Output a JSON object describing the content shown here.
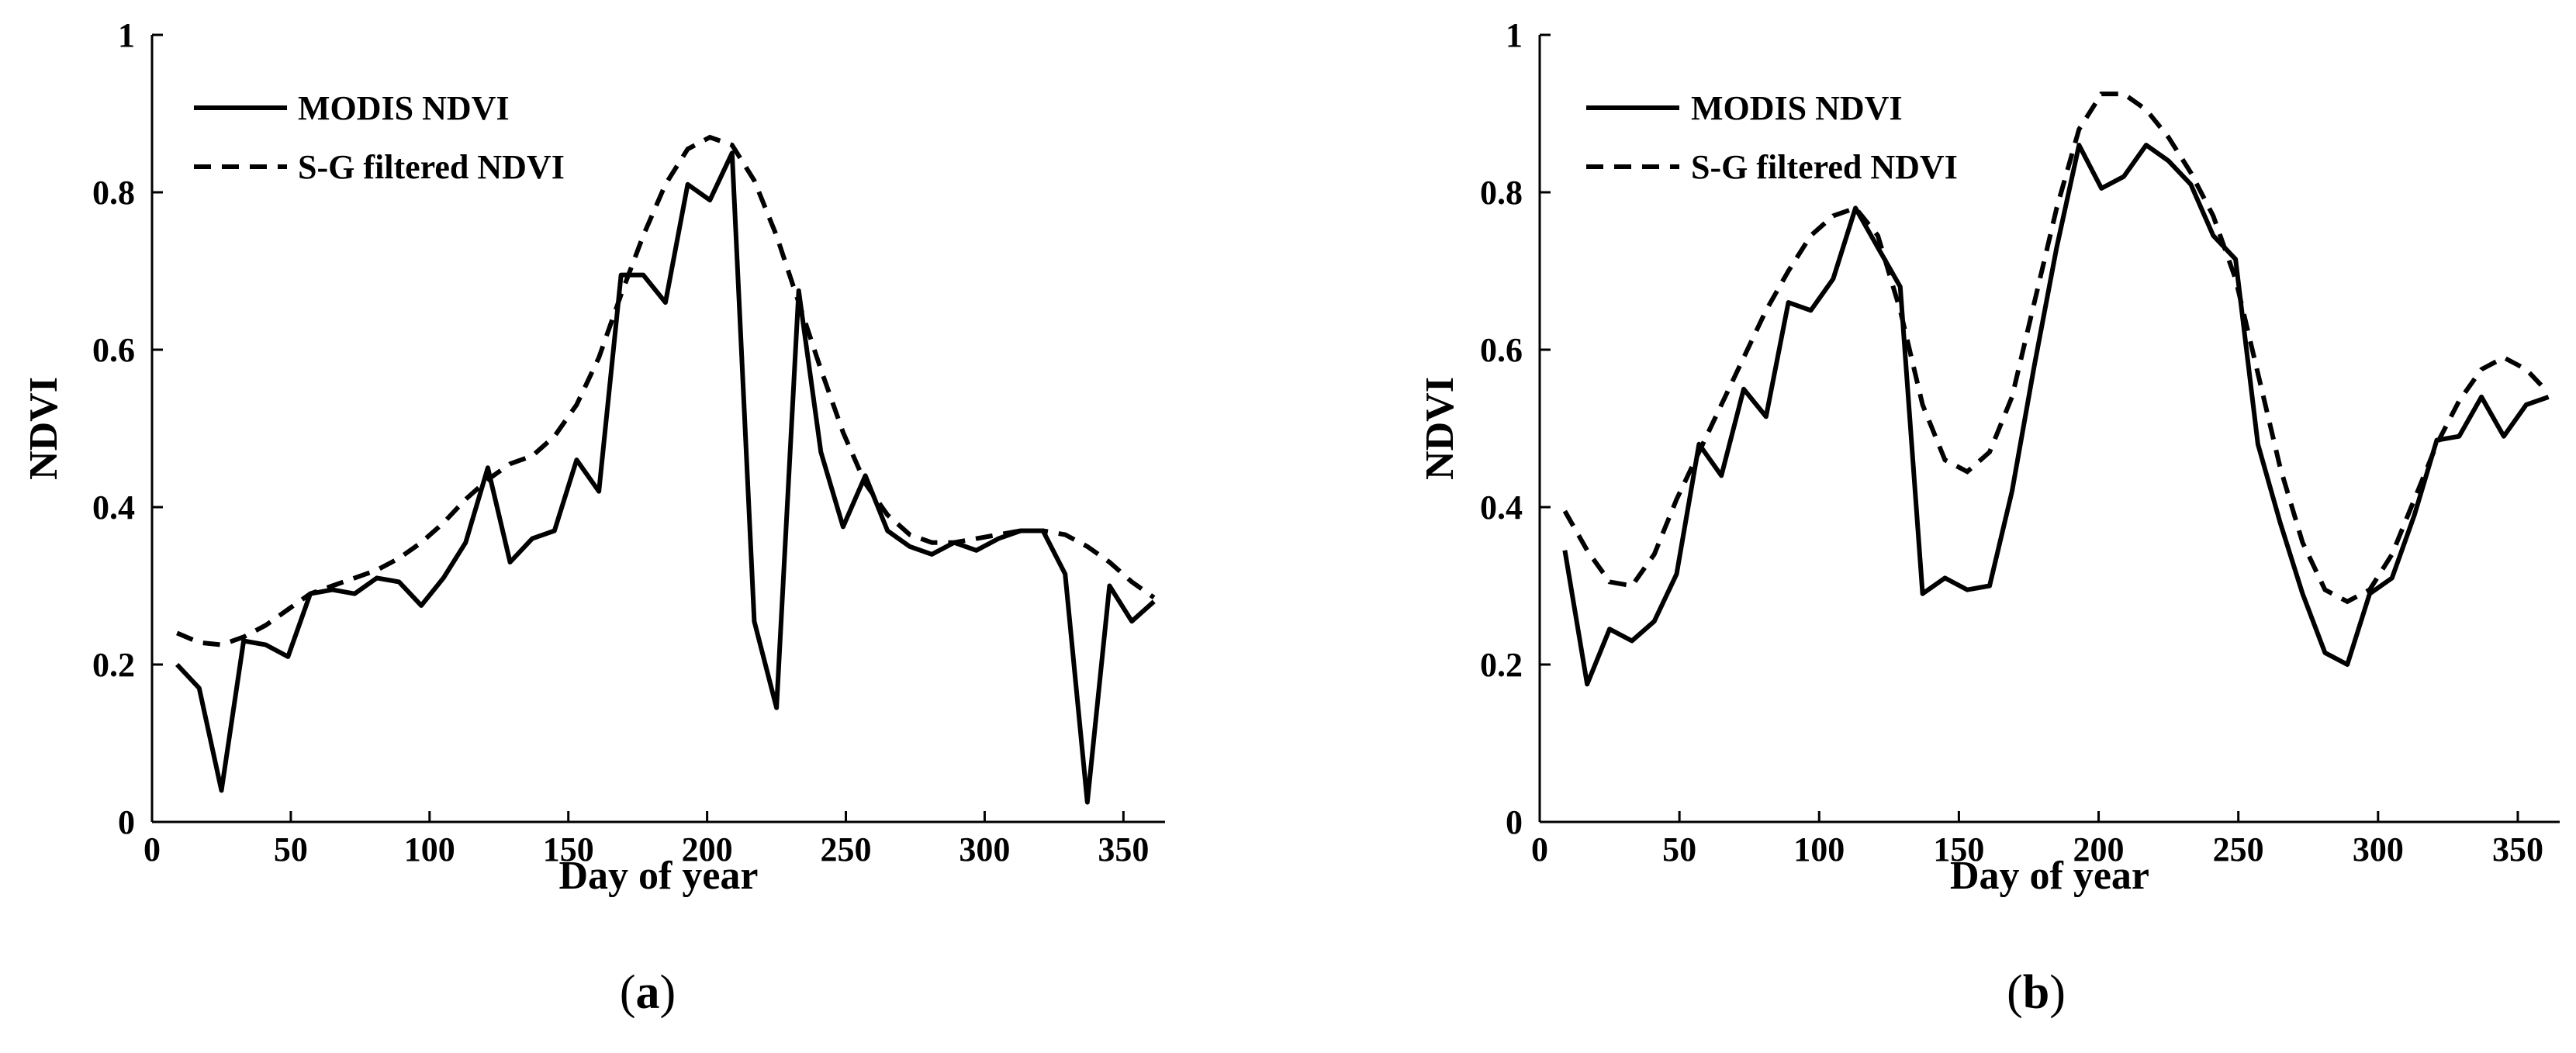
{
  "chart_data": [
    {
      "type": "line",
      "panel_label": "a",
      "xlabel": "Day of year",
      "ylabel": "NDVI",
      "xlim": [
        0,
        365
      ],
      "ylim": [
        0,
        1
      ],
      "xticks": [
        0,
        50,
        100,
        150,
        200,
        250,
        300,
        350
      ],
      "yticks": [
        0,
        0.2,
        0.4,
        0.6,
        0.8,
        1
      ],
      "grid": false,
      "legend_position": "top-left",
      "series": [
        {
          "name": "MODIS NDVI",
          "style": "solid",
          "x": [
            9,
            17,
            25,
            33,
            41,
            49,
            57,
            65,
            73,
            81,
            89,
            97,
            105,
            113,
            121,
            129,
            137,
            145,
            153,
            161,
            169,
            177,
            185,
            193,
            201,
            209,
            217,
            225,
            233,
            241,
            249,
            257,
            265,
            273,
            281,
            289,
            297,
            305,
            313,
            321,
            329,
            337,
            345,
            353,
            361
          ],
          "y": [
            0.2,
            0.17,
            0.04,
            0.23,
            0.225,
            0.21,
            0.29,
            0.295,
            0.29,
            0.31,
            0.305,
            0.275,
            0.31,
            0.355,
            0.45,
            0.33,
            0.36,
            0.37,
            0.46,
            0.42,
            0.695,
            0.695,
            0.66,
            0.81,
            0.79,
            0.85,
            0.255,
            0.145,
            0.675,
            0.47,
            0.375,
            0.44,
            0.37,
            0.35,
            0.34,
            0.355,
            0.345,
            0.36,
            0.37,
            0.37,
            0.315,
            0.025,
            0.3,
            0.255,
            0.28
          ]
        },
        {
          "name": "S-G filtered NDVI",
          "style": "dashed",
          "x": [
            9,
            17,
            25,
            33,
            41,
            49,
            57,
            65,
            73,
            81,
            89,
            97,
            105,
            113,
            121,
            129,
            137,
            145,
            153,
            161,
            169,
            177,
            185,
            193,
            201,
            209,
            217,
            225,
            233,
            241,
            249,
            257,
            265,
            273,
            281,
            289,
            297,
            305,
            313,
            321,
            329,
            337,
            345,
            353,
            361
          ],
          "y": [
            0.24,
            0.228,
            0.225,
            0.235,
            0.25,
            0.27,
            0.29,
            0.3,
            0.31,
            0.32,
            0.335,
            0.355,
            0.38,
            0.41,
            0.435,
            0.455,
            0.465,
            0.49,
            0.53,
            0.59,
            0.67,
            0.745,
            0.81,
            0.855,
            0.87,
            0.86,
            0.815,
            0.745,
            0.66,
            0.575,
            0.495,
            0.43,
            0.39,
            0.365,
            0.355,
            0.355,
            0.36,
            0.365,
            0.37,
            0.37,
            0.365,
            0.35,
            0.33,
            0.305,
            0.285
          ]
        }
      ]
    },
    {
      "type": "line",
      "panel_label": "b",
      "xlabel": "Day of year",
      "ylabel": "NDVI",
      "xlim": [
        0,
        365
      ],
      "ylim": [
        0,
        1
      ],
      "xticks": [
        0,
        50,
        100,
        150,
        200,
        250,
        300,
        350
      ],
      "yticks": [
        0,
        0.2,
        0.4,
        0.6,
        0.8,
        1
      ],
      "grid": false,
      "legend_position": "top-left",
      "series": [
        {
          "name": "MODIS NDVI",
          "style": "solid",
          "x": [
            9,
            17,
            25,
            33,
            41,
            49,
            57,
            65,
            73,
            81,
            89,
            97,
            105,
            113,
            121,
            129,
            137,
            145,
            153,
            161,
            169,
            177,
            185,
            193,
            201,
            209,
            217,
            225,
            233,
            241,
            249,
            257,
            265,
            273,
            281,
            289,
            297,
            305,
            313,
            321,
            329,
            337,
            345,
            353,
            361
          ],
          "y": [
            0.345,
            0.175,
            0.245,
            0.23,
            0.255,
            0.315,
            0.48,
            0.44,
            0.55,
            0.515,
            0.66,
            0.65,
            0.69,
            0.78,
            0.73,
            0.68,
            0.29,
            0.31,
            0.295,
            0.3,
            0.42,
            0.58,
            0.73,
            0.86,
            0.805,
            0.82,
            0.86,
            0.84,
            0.81,
            0.745,
            0.715,
            0.48,
            0.38,
            0.29,
            0.215,
            0.2,
            0.29,
            0.31,
            0.39,
            0.485,
            0.49,
            0.54,
            0.49,
            0.53,
            0.54
          ]
        },
        {
          "name": "S-G filtered NDVI",
          "style": "dashed",
          "x": [
            9,
            17,
            25,
            33,
            41,
            49,
            57,
            65,
            73,
            81,
            89,
            97,
            105,
            113,
            121,
            129,
            137,
            145,
            153,
            161,
            169,
            177,
            185,
            193,
            201,
            209,
            217,
            225,
            233,
            241,
            249,
            257,
            265,
            273,
            281,
            289,
            297,
            305,
            313,
            321,
            329,
            337,
            345,
            353,
            361
          ],
          "y": [
            0.395,
            0.345,
            0.305,
            0.3,
            0.34,
            0.41,
            0.47,
            0.53,
            0.59,
            0.65,
            0.7,
            0.745,
            0.77,
            0.78,
            0.745,
            0.65,
            0.53,
            0.46,
            0.445,
            0.47,
            0.54,
            0.66,
            0.78,
            0.88,
            0.925,
            0.925,
            0.905,
            0.87,
            0.825,
            0.77,
            0.69,
            0.57,
            0.45,
            0.355,
            0.295,
            0.28,
            0.295,
            0.34,
            0.41,
            0.48,
            0.535,
            0.575,
            0.59,
            0.575,
            0.545
          ]
        }
      ]
    }
  ]
}
